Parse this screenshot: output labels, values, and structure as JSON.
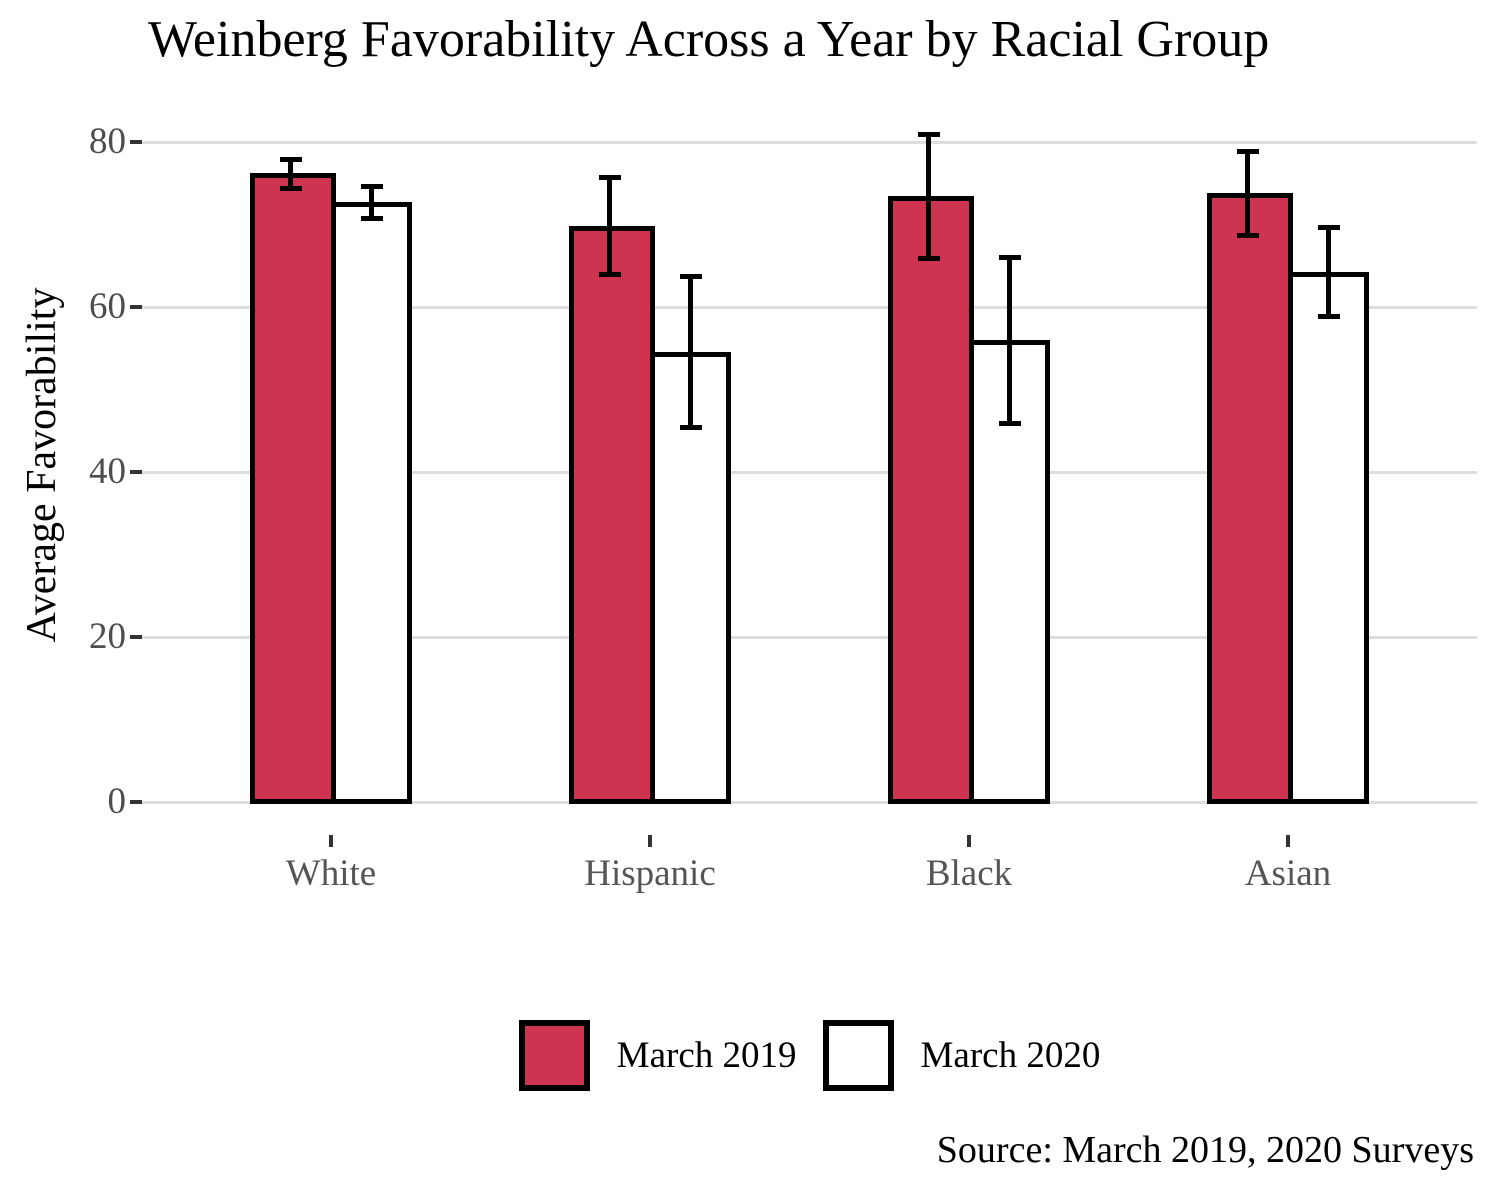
{
  "title": "Weinberg Favorability Across a Year by Racial Group",
  "caption": "Source: March 2019, 2020 Surveys",
  "colors": {
    "bar_2019": "#CE3350",
    "bar_2020": "#FFFFFF",
    "bar_outline": "#000000",
    "gridline": "#DDDDDD",
    "tick_mark": "#333333",
    "axis_text": "#4D4D4D",
    "title_text": "#000000"
  },
  "chart_data": {
    "type": "bar",
    "title": "Weinberg Favorability Across a Year by Racial Group",
    "xlabel": "",
    "ylabel": "Average Favorability",
    "ylim": [
      0,
      80
    ],
    "yticks": [
      0,
      20,
      40,
      60,
      80
    ],
    "grid": "horizontal",
    "legend_position": "bottom-center",
    "categories": [
      "White",
      "Hispanic",
      "Black",
      "Asian"
    ],
    "series": [
      {
        "name": "March 2019",
        "fill": "#CE3350",
        "values": [
          76.2,
          69.8,
          73.4,
          73.8
        ],
        "error_low": [
          74.4,
          64.0,
          65.9,
          68.7
        ],
        "error_high": [
          77.9,
          75.7,
          80.9,
          78.8
        ]
      },
      {
        "name": "March 2020",
        "fill": "#FFFFFF",
        "values": [
          72.7,
          54.5,
          56.0,
          64.2
        ],
        "error_low": [
          70.7,
          45.4,
          45.9,
          58.8
        ],
        "error_high": [
          74.6,
          63.7,
          66.0,
          69.6
        ]
      }
    ]
  }
}
